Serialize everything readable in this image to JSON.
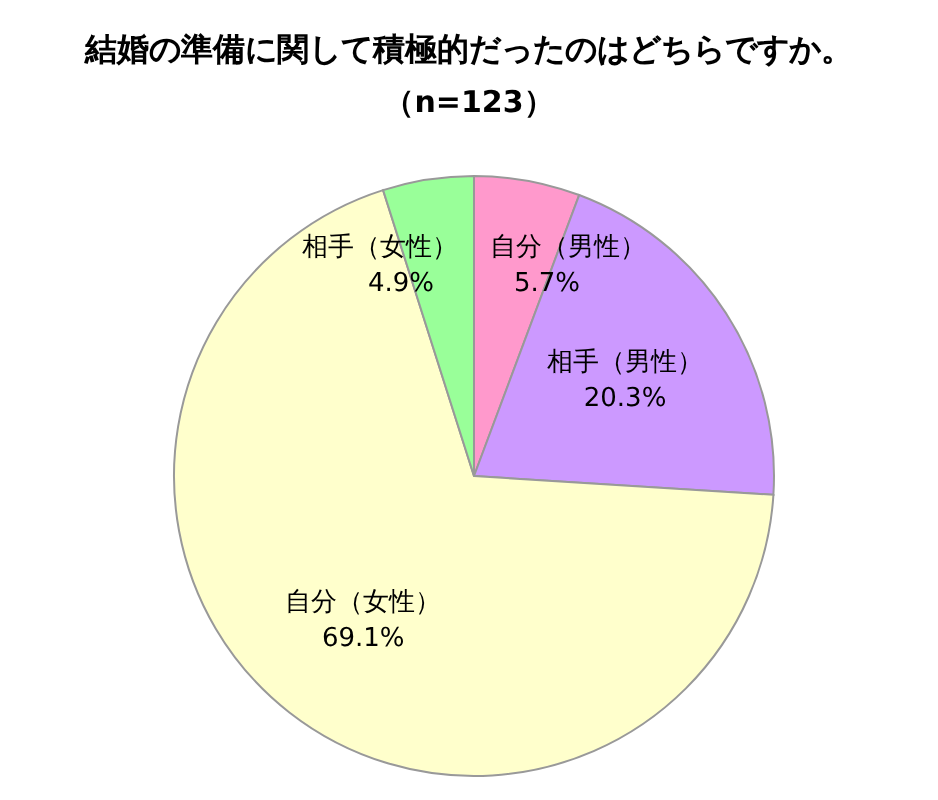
{
  "chart_data": {
    "type": "pie",
    "title": "結婚の準備に関して積極的だったのはどちらですか。",
    "subtitle": "（n=123）",
    "categories": [
      "自分（男性）",
      "相手（男性）",
      "自分（女性）",
      "相手（女性）"
    ],
    "values": [
      5.7,
      20.3,
      69.1,
      4.9
    ],
    "value_labels": [
      "5.7%",
      "20.3%",
      "69.1%",
      "4.9%"
    ],
    "colors": [
      "#ff99cc",
      "#cc99ff",
      "#ffffcc",
      "#99ff99"
    ]
  }
}
